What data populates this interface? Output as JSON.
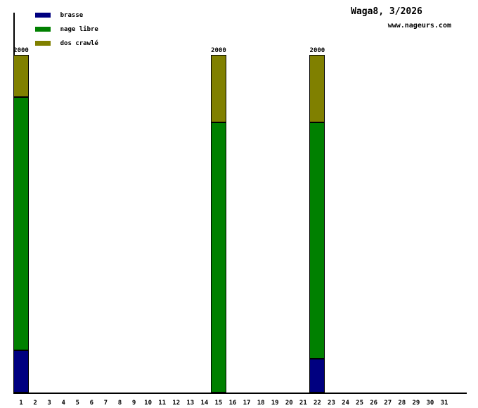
{
  "chart_data": {
    "type": "bar",
    "stacked": true,
    "title": "Waga8, 3/2026",
    "subtitle": "www.nageurs.com",
    "xlabel": "",
    "ylabel": "",
    "ylim": [
      0,
      2000
    ],
    "grid": false,
    "legend_position": "top-left",
    "categories": [
      1,
      2,
      3,
      4,
      5,
      6,
      7,
      8,
      9,
      10,
      11,
      12,
      13,
      14,
      15,
      16,
      17,
      18,
      19,
      20,
      21,
      22,
      23,
      24,
      25,
      26,
      27,
      28,
      29,
      30,
      31
    ],
    "series": [
      {
        "name": "brasse",
        "color": "#000080",
        "values": [
          250,
          0,
          0,
          0,
          0,
          0,
          0,
          0,
          0,
          0,
          0,
          0,
          0,
          0,
          0,
          0,
          0,
          0,
          0,
          0,
          0,
          200,
          0,
          0,
          0,
          0,
          0,
          0,
          0,
          0,
          0
        ]
      },
      {
        "name": "nage libre",
        "color": "#008000",
        "values": [
          1500,
          0,
          0,
          0,
          0,
          0,
          0,
          0,
          0,
          0,
          0,
          0,
          0,
          0,
          1600,
          0,
          0,
          0,
          0,
          0,
          0,
          1400,
          0,
          0,
          0,
          0,
          0,
          0,
          0,
          0,
          0
        ]
      },
      {
        "name": "dos crawlé",
        "color": "#808000",
        "values": [
          250,
          0,
          0,
          0,
          0,
          0,
          0,
          0,
          0,
          0,
          0,
          0,
          0,
          0,
          400,
          0,
          0,
          0,
          0,
          0,
          0,
          400,
          0,
          0,
          0,
          0,
          0,
          0,
          0,
          0,
          0
        ]
      }
    ],
    "total_labels": {
      "1": "2000",
      "15": "2000",
      "22": "2000"
    },
    "axis_color": "#000000",
    "background_color": "#ffffff"
  }
}
